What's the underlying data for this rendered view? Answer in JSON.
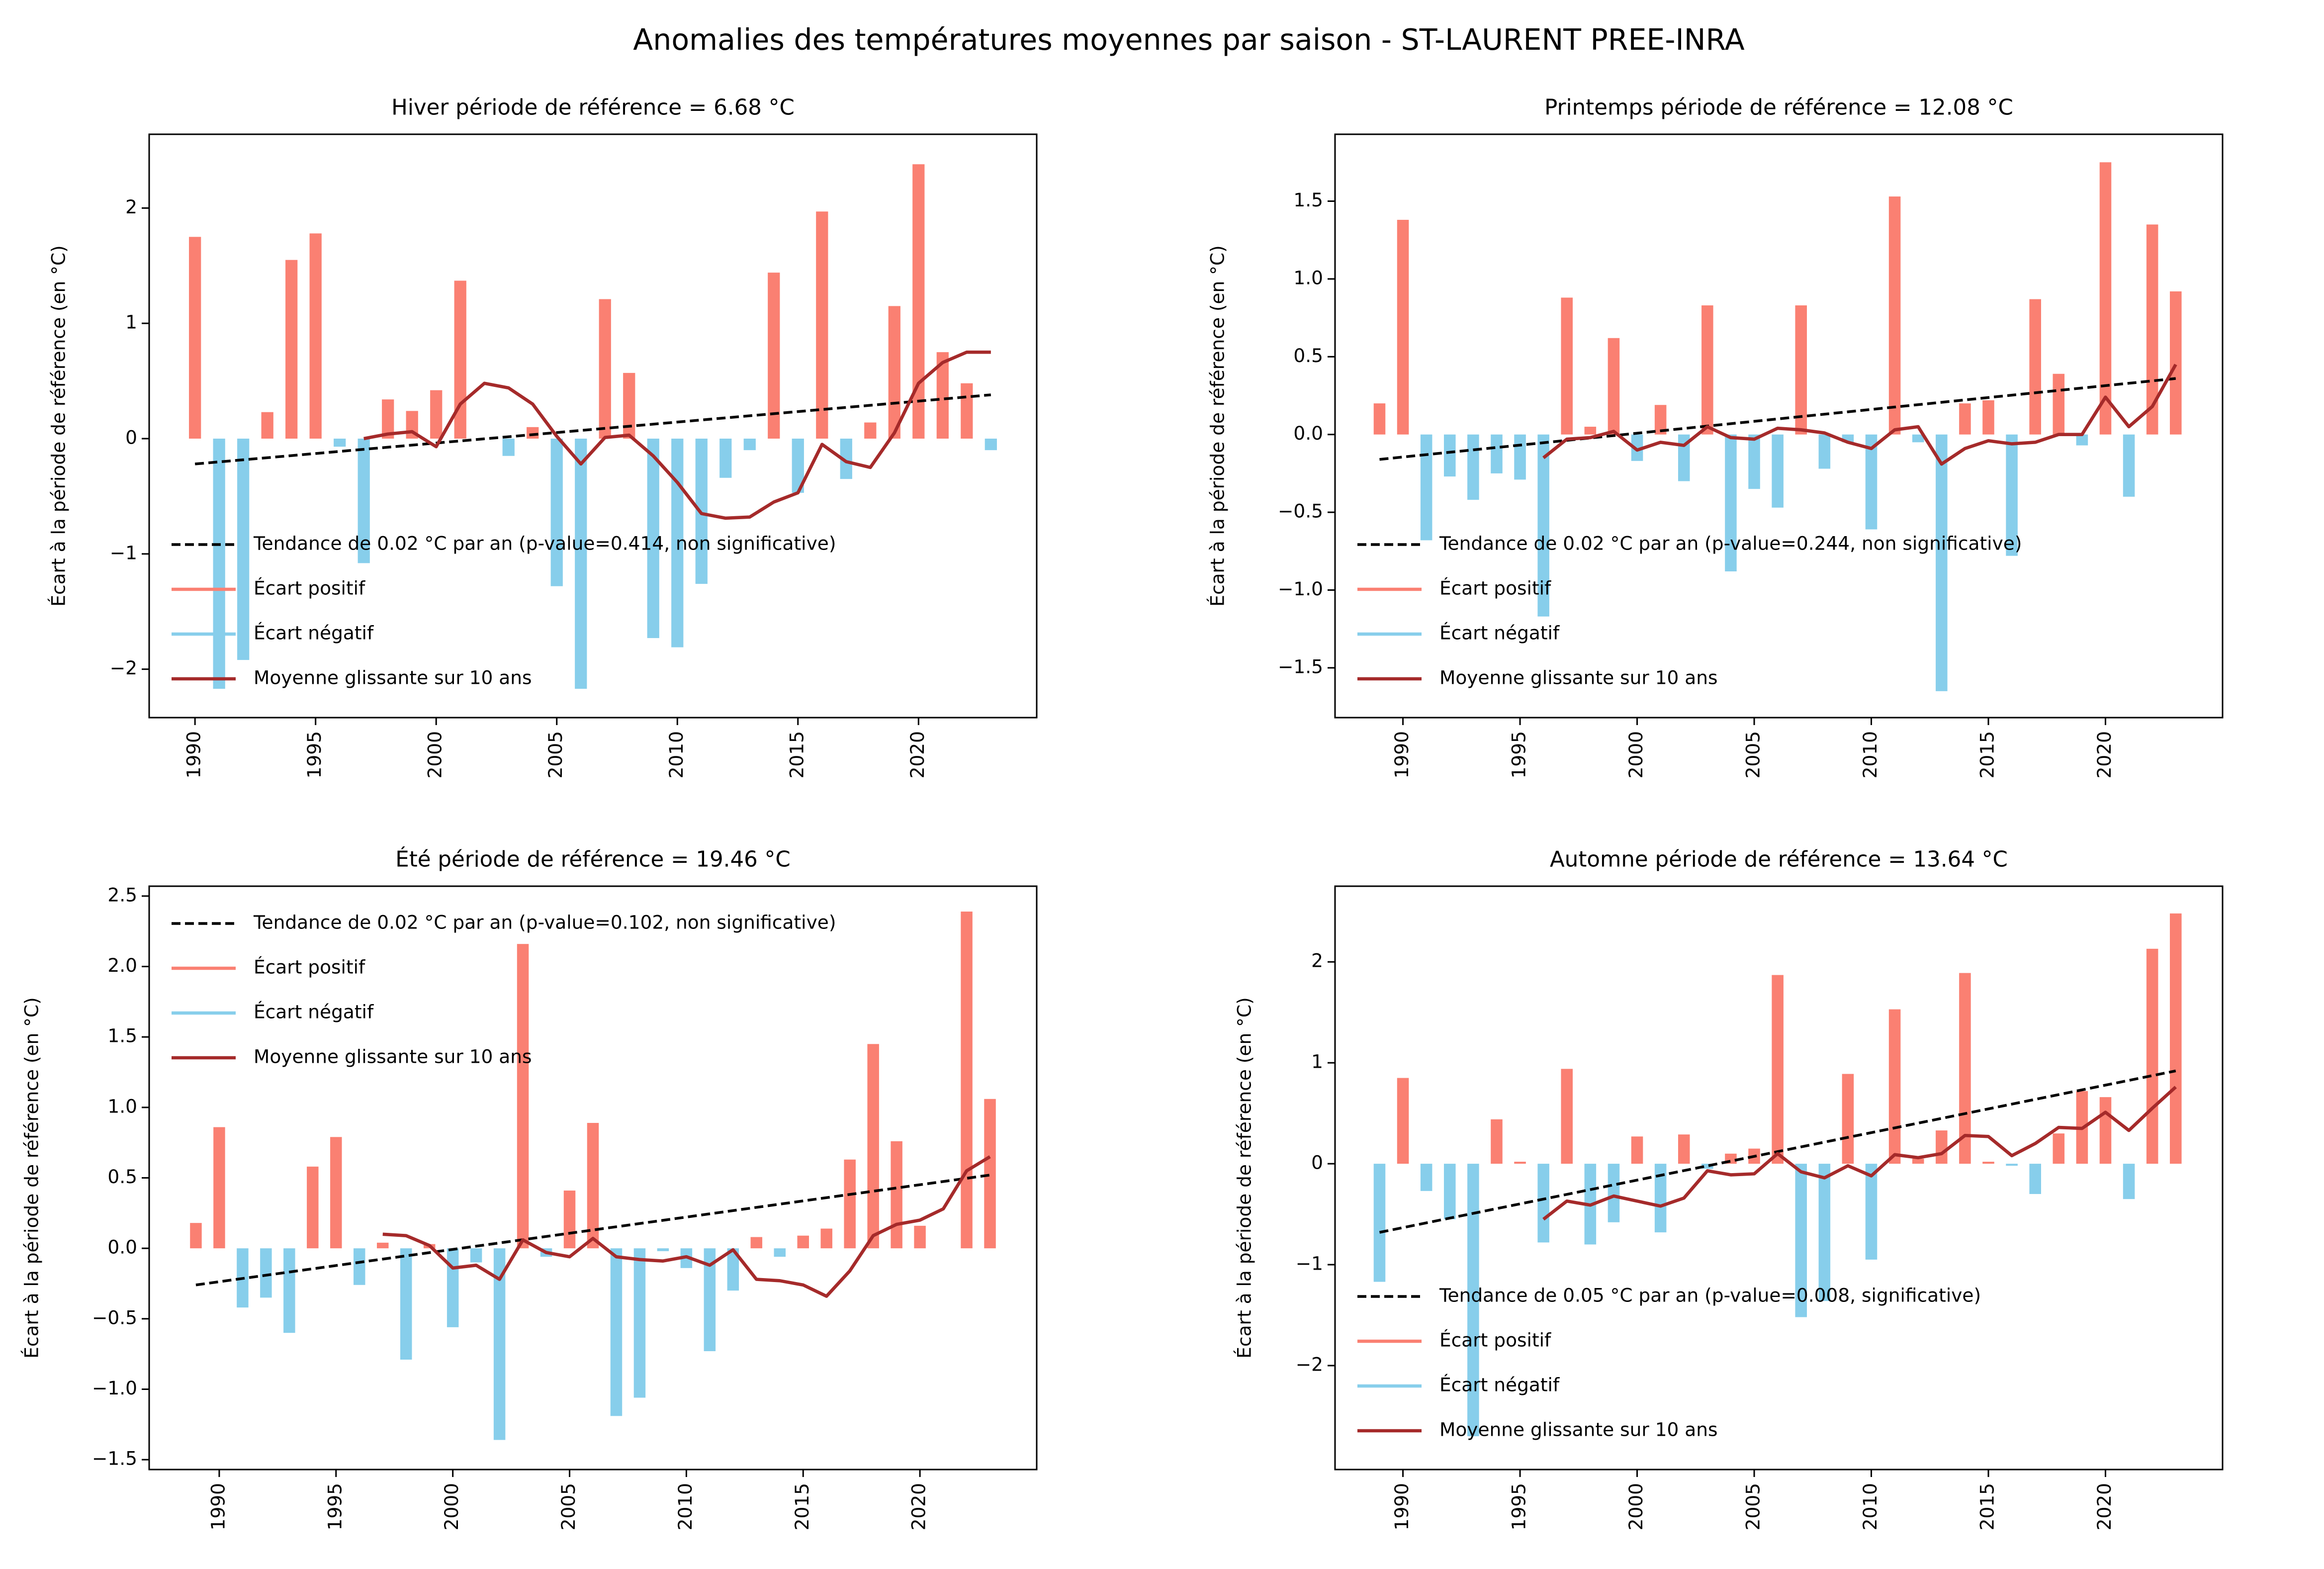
{
  "title": "Anomalies des températures moyennes par saison - ST-LAURENT PREE-INRA",
  "chart_data": [
    {
      "type": "bar",
      "title": "Hiver période de référence = 6.68 °C",
      "ylabel": "Écart à la période de référence (en °C)",
      "legend": "lower left",
      "x": [
        1990,
        1991,
        1992,
        1993,
        1994,
        1995,
        1996,
        1997,
        1998,
        1999,
        2000,
        2001,
        2002,
        2003,
        2004,
        2005,
        2006,
        2007,
        2008,
        2009,
        2010,
        2011,
        2012,
        2013,
        2014,
        2015,
        2016,
        2017,
        2018,
        2019,
        2020,
        2021,
        2022,
        2023
      ],
      "xlim": [
        1988.1,
        2024.9
      ],
      "ylim": [
        -2.42,
        2.64
      ],
      "xticks": [
        1990,
        1995,
        2000,
        2005,
        2010,
        2015,
        2020
      ],
      "yticks": [
        {
          "value": -2,
          "label": "−2"
        },
        {
          "value": -1,
          "label": "−1"
        },
        0,
        1,
        2
      ],
      "series": [
        {
          "name": "Tendance de 0.02 °C par an (p-value=0.414, non significative)",
          "kind": "trend",
          "color": "#000000",
          "x": [
            1990,
            2023
          ],
          "values": [
            -0.22,
            0.38
          ]
        },
        {
          "name": "Écart positif",
          "kind": "bar",
          "color": "#fa8072",
          "values": [
            1.75,
            null,
            null,
            0.23,
            1.55,
            1.78,
            null,
            null,
            0.34,
            0.24,
            0.42,
            1.37,
            0.0,
            null,
            0.1,
            null,
            null,
            1.21,
            0.57,
            null,
            null,
            null,
            null,
            null,
            1.44,
            null,
            1.97,
            null,
            0.14,
            1.15,
            2.38,
            0.75,
            0.48,
            null
          ]
        },
        {
          "name": "Écart négatif",
          "kind": "bar",
          "color": "#87ceeb",
          "values": [
            null,
            -2.17,
            -1.92,
            null,
            null,
            null,
            -0.07,
            -1.08,
            null,
            null,
            null,
            null,
            null,
            -0.15,
            null,
            -1.28,
            -2.17,
            null,
            null,
            -1.73,
            -1.81,
            -1.26,
            -0.34,
            -0.1,
            null,
            -0.47,
            null,
            -0.35,
            null,
            null,
            null,
            null,
            null,
            -0.1
          ]
        },
        {
          "name": "Moyenne glissante sur 10 ans",
          "kind": "line",
          "color": "#a52a2a",
          "values": [
            null,
            null,
            null,
            null,
            null,
            null,
            null,
            0.0,
            0.04,
            0.06,
            -0.07,
            0.3,
            0.48,
            0.44,
            0.3,
            0.02,
            -0.22,
            0.01,
            0.03,
            -0.15,
            -0.38,
            -0.65,
            -0.69,
            -0.68,
            -0.55,
            -0.47,
            -0.05,
            -0.2,
            -0.25,
            0.05,
            0.48,
            0.66,
            0.75,
            0.75
          ]
        }
      ]
    },
    {
      "type": "bar",
      "title": "Printemps période de référence = 12.08 °C",
      "ylabel": "Écart à la période de référence (en °C)",
      "legend": "lower left",
      "x": [
        1989,
        1990,
        1991,
        1992,
        1993,
        1994,
        1995,
        1996,
        1997,
        1998,
        1999,
        2000,
        2001,
        2002,
        2003,
        2004,
        2005,
        2006,
        2007,
        2008,
        2009,
        2010,
        2011,
        2012,
        2013,
        2014,
        2015,
        2016,
        2017,
        2018,
        2019,
        2020,
        2021,
        2022,
        2023
      ],
      "xlim": [
        1987.1,
        2025.0
      ],
      "ylim": [
        -1.82,
        1.93
      ],
      "xticks": [
        1990,
        1995,
        2000,
        2005,
        2010,
        2015,
        2020
      ],
      "yticks": [
        {
          "value": -1.5,
          "label": "−1.5"
        },
        {
          "value": -1,
          "label": "−1.0"
        },
        {
          "value": -0.5,
          "label": "−0.5"
        },
        {
          "value": 0,
          "label": "0.0"
        },
        0.5,
        {
          "value": 1,
          "label": "1.0"
        },
        1.5
      ],
      "series": [
        {
          "name": "Tendance de 0.02 °C par an (p-value=0.244, non significative)",
          "kind": "trend",
          "color": "#000000",
          "x": [
            1989,
            2023
          ],
          "values": [
            -0.16,
            0.36
          ]
        },
        {
          "name": "Écart positif",
          "kind": "bar",
          "color": "#fa8072",
          "values": [
            0.2,
            1.38,
            null,
            null,
            null,
            null,
            null,
            null,
            0.88,
            0.05,
            0.62,
            null,
            0.19,
            null,
            0.83,
            null,
            null,
            null,
            0.83,
            null,
            null,
            null,
            1.53,
            null,
            null,
            0.2,
            0.22,
            null,
            0.87,
            0.39,
            null,
            1.75,
            null,
            1.35,
            0.92
          ]
        },
        {
          "name": "Écart négatif",
          "kind": "bar",
          "color": "#87ceeb",
          "values": [
            null,
            null,
            -0.68,
            -0.27,
            -0.42,
            -0.25,
            -0.29,
            -1.17,
            null,
            null,
            null,
            -0.17,
            null,
            -0.3,
            null,
            -0.88,
            -0.35,
            -0.47,
            null,
            -0.22,
            -0.05,
            -0.61,
            null,
            -0.05,
            -1.65,
            null,
            null,
            -0.78,
            null,
            null,
            -0.07,
            null,
            -0.4,
            null,
            null
          ]
        },
        {
          "name": "Moyenne glissante sur 10 ans",
          "kind": "line",
          "color": "#a52a2a",
          "values": [
            null,
            null,
            null,
            null,
            null,
            null,
            null,
            -0.15,
            -0.03,
            -0.02,
            0.02,
            -0.1,
            -0.05,
            -0.07,
            0.05,
            -0.02,
            -0.03,
            0.04,
            0.03,
            0.01,
            -0.05,
            -0.09,
            0.03,
            0.05,
            -0.19,
            -0.09,
            -0.04,
            -0.06,
            -0.05,
            0.0,
            0.0,
            0.24,
            0.05,
            0.18,
            0.45
          ]
        }
      ]
    },
    {
      "type": "bar",
      "title": "Été période de référence = 19.46 °C",
      "ylabel": "Écart à la période de référence (en °C)",
      "legend": "upper left",
      "x": [
        1989,
        1990,
        1991,
        1992,
        1993,
        1994,
        1995,
        1996,
        1997,
        1998,
        1999,
        2000,
        2001,
        2002,
        2003,
        2004,
        2005,
        2006,
        2007,
        2008,
        2009,
        2010,
        2011,
        2012,
        2013,
        2014,
        2015,
        2016,
        2017,
        2018,
        2019,
        2020,
        2021,
        2022,
        2023
      ],
      "xlim": [
        1987.0,
        2025.0
      ],
      "ylim": [
        -1.57,
        2.57
      ],
      "xticks": [
        1990,
        1995,
        2000,
        2005,
        2010,
        2015,
        2020
      ],
      "yticks": [
        {
          "value": -1.5,
          "label": "−1.5"
        },
        {
          "value": -1,
          "label": "−1.0"
        },
        {
          "value": -0.5,
          "label": "−0.5"
        },
        {
          "value": 0,
          "label": "0.0"
        },
        0.5,
        {
          "value": 1,
          "label": "1.0"
        },
        1.5,
        {
          "value": 2,
          "label": "2.0"
        },
        2.5
      ],
      "series": [
        {
          "name": "Tendance de 0.02 °C par an (p-value=0.102, non significative)",
          "kind": "trend",
          "color": "#000000",
          "x": [
            1989,
            2023
          ],
          "values": [
            -0.26,
            0.52
          ]
        },
        {
          "name": "Écart positif",
          "kind": "bar",
          "color": "#fa8072",
          "values": [
            0.18,
            0.86,
            null,
            null,
            null,
            0.58,
            0.79,
            null,
            0.04,
            null,
            0.03,
            null,
            null,
            null,
            2.16,
            null,
            0.41,
            0.89,
            null,
            null,
            null,
            null,
            null,
            null,
            0.08,
            null,
            0.09,
            0.14,
            0.63,
            1.45,
            0.76,
            0.16,
            0.0,
            2.39,
            1.06
          ]
        },
        {
          "name": "Écart négatif",
          "kind": "bar",
          "color": "#87ceeb",
          "values": [
            null,
            null,
            -0.42,
            -0.35,
            -0.6,
            null,
            null,
            -0.26,
            null,
            -0.79,
            null,
            -0.56,
            -0.1,
            -1.36,
            null,
            -0.06,
            null,
            null,
            -1.19,
            -1.06,
            -0.02,
            -0.14,
            -0.73,
            -0.3,
            null,
            -0.06,
            null,
            null,
            null,
            null,
            null,
            null,
            null,
            null,
            null
          ]
        },
        {
          "name": "Moyenne glissante sur 10 ans",
          "kind": "line",
          "color": "#a52a2a",
          "values": [
            null,
            null,
            null,
            null,
            null,
            null,
            null,
            null,
            0.1,
            0.09,
            0.02,
            -0.14,
            -0.12,
            -0.22,
            0.06,
            -0.03,
            -0.06,
            0.07,
            -0.06,
            -0.08,
            -0.09,
            -0.06,
            -0.12,
            -0.01,
            -0.22,
            -0.23,
            -0.26,
            -0.34,
            -0.16,
            0.09,
            0.17,
            0.2,
            0.28,
            0.55,
            0.65
          ]
        }
      ]
    },
    {
      "type": "bar",
      "title": "Automne période de référence = 13.64 °C",
      "ylabel": "Écart à la période de référence (en °C)",
      "legend": "lower left",
      "x": [
        1989,
        1990,
        1991,
        1992,
        1993,
        1994,
        1995,
        1996,
        1997,
        1998,
        1999,
        2000,
        2001,
        2002,
        2003,
        2004,
        2005,
        2006,
        2007,
        2008,
        2009,
        2010,
        2011,
        2012,
        2013,
        2014,
        2015,
        2016,
        2017,
        2018,
        2019,
        2020,
        2021,
        2022,
        2023
      ],
      "xlim": [
        1987.1,
        2025.0
      ],
      "ylim": [
        -3.03,
        2.75
      ],
      "xticks": [
        1990,
        1995,
        2000,
        2005,
        2010,
        2015,
        2020
      ],
      "yticks": [
        {
          "value": -2,
          "label": "−2"
        },
        {
          "value": -1,
          "label": "−1"
        },
        0,
        1,
        2
      ],
      "series": [
        {
          "name": "Tendance de 0.05 °C par an (p-value=0.008, significative)",
          "kind": "trend",
          "color": "#000000",
          "x": [
            1989,
            2023
          ],
          "values": [
            -0.68,
            0.92
          ]
        },
        {
          "name": "Écart positif",
          "kind": "bar",
          "color": "#fa8072",
          "values": [
            null,
            0.85,
            null,
            null,
            null,
            0.44,
            0.02,
            null,
            0.94,
            null,
            null,
            0.27,
            null,
            0.29,
            null,
            0.1,
            0.15,
            1.87,
            null,
            null,
            0.89,
            null,
            1.53,
            0.05,
            0.33,
            1.89,
            0.02,
            null,
            null,
            0.3,
            0.72,
            0.66,
            null,
            2.13,
            2.48
          ]
        },
        {
          "name": "Écart négatif",
          "kind": "bar",
          "color": "#87ceeb",
          "values": [
            -1.17,
            null,
            -0.27,
            -0.55,
            -2.7,
            null,
            null,
            -0.78,
            null,
            -0.8,
            -0.58,
            null,
            -0.68,
            null,
            -0.05,
            null,
            null,
            null,
            -1.52,
            -1.36,
            null,
            -0.95,
            null,
            null,
            null,
            null,
            null,
            -0.02,
            -0.3,
            null,
            null,
            null,
            -0.35,
            null,
            null
          ]
        },
        {
          "name": "Moyenne glissante sur 10 ans",
          "kind": "line",
          "color": "#a52a2a",
          "values": [
            null,
            null,
            null,
            null,
            null,
            null,
            null,
            -0.55,
            -0.37,
            -0.41,
            -0.32,
            -0.37,
            -0.42,
            -0.34,
            -0.07,
            -0.11,
            -0.1,
            0.1,
            -0.08,
            -0.14,
            -0.02,
            -0.12,
            0.09,
            0.06,
            0.1,
            0.28,
            0.27,
            0.08,
            0.2,
            0.36,
            0.35,
            0.51,
            0.33,
            0.55,
            0.76
          ]
        }
      ]
    }
  ]
}
